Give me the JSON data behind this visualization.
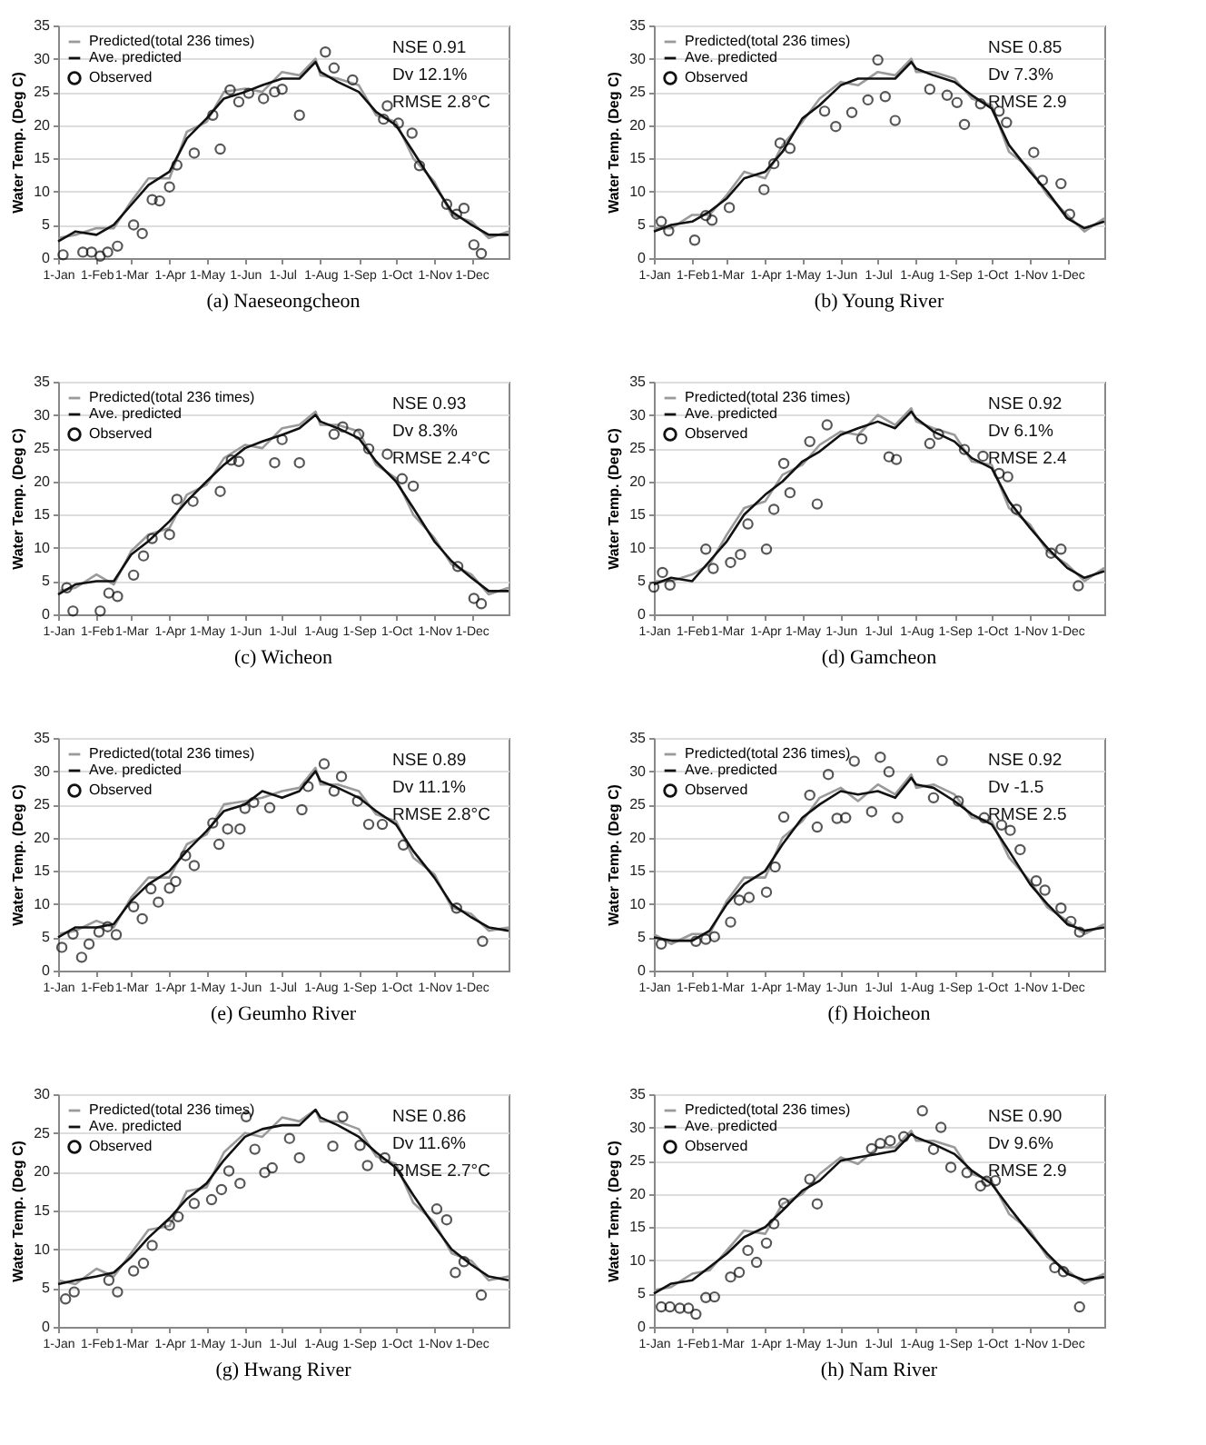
{
  "chart_data": [
    {
      "type": "line",
      "title": "(a) Naeseongcheon",
      "ylabel": "Water Temp. (Deg C)",
      "legend": "top left",
      "grid": "y",
      "x": [
        "--01-01",
        "--01-15",
        "--02-01",
        "--02-15",
        "--03-01",
        "--03-15",
        "--04-01",
        "--04-15",
        "--05-01",
        "--05-15",
        "--06-01",
        "--06-15",
        "--07-01",
        "--07-15",
        "--07-28",
        "--08-01",
        "--08-15",
        "--09-01",
        "--09-15",
        "--10-01",
        "--10-15",
        "--11-01",
        "--11-15",
        "--12-01",
        "--12-15",
        "--12-31"
      ],
      "xlim": [
        "--01-01",
        "--12-31"
      ],
      "xticks": [
        {
          "value": "--01-01",
          "label": "1-Jan"
        },
        {
          "value": "--02-01",
          "label": "1-Feb"
        },
        {
          "value": "--03-01",
          "label": "1-Mar"
        },
        {
          "value": "--04-01",
          "label": "1-Apr"
        },
        {
          "value": "--05-01",
          "label": "1-May"
        },
        {
          "value": "--06-01",
          "label": "1-Jun"
        },
        {
          "value": "--07-01",
          "label": "1-Jul"
        },
        {
          "value": "--08-01",
          "label": "1-Aug"
        },
        {
          "value": "--09-01",
          "label": "1-Sep"
        },
        {
          "value": "--10-01",
          "label": "1-Oct"
        },
        {
          "value": "--11-01",
          "label": "1-Nov"
        },
        {
          "value": "--12-01",
          "label": "1-Dec"
        }
      ],
      "ylim": [
        0,
        35
      ],
      "yticks": [
        0,
        5,
        10,
        15,
        20,
        25,
        30,
        35
      ],
      "annotations": [
        "NSE 0.91",
        "Dv 12.1%",
        "RMSE 2.8°C"
      ],
      "series": [
        {
          "name": "Predicted(total 236 times)",
          "type": "line",
          "color": "#9a9a9a",
          "values": [
            3,
            3.5,
            4.5,
            4.5,
            8.5,
            12,
            12,
            19,
            20.5,
            25,
            25.5,
            25,
            28,
            27.5,
            30,
            27.5,
            27,
            26,
            21.5,
            20.5,
            15,
            11.5,
            6.5,
            5.5,
            3,
            4
          ]
        },
        {
          "name": "Ave. predicted",
          "type": "line",
          "color": "#111111",
          "values": [
            2.5,
            4,
            3.5,
            5,
            8,
            11,
            13,
            18,
            21,
            24,
            25,
            26,
            27,
            27,
            29.5,
            28,
            26.5,
            25,
            22,
            20,
            16,
            11,
            7,
            5,
            3.5,
            3.5
          ]
        },
        {
          "name": "Observed",
          "type": "scatter",
          "marker": "circle",
          "color": "#111111",
          "x": [
            "--01-05",
            "--01-21",
            "--01-28",
            "--02-04",
            "--02-10",
            "--02-18",
            "--03-03",
            "--03-10",
            "--03-18",
            "--03-24",
            "--04-01",
            "--04-07",
            "--04-21",
            "--05-06",
            "--05-12",
            "--05-20",
            "--05-27",
            "--06-04",
            "--06-16",
            "--06-25",
            "--07-01",
            "--07-15",
            "--08-05",
            "--08-12",
            "--08-27",
            "--09-21",
            "--09-24",
            "--10-03",
            "--10-14",
            "--10-20",
            "--11-11",
            "--11-19",
            "--11-25",
            "--12-03",
            "--12-09"
          ],
          "values": [
            0.5,
            0.9,
            0.9,
            0.3,
            0.9,
            1.8,
            5,
            3.7,
            8.8,
            8.6,
            10.7,
            14,
            15.8,
            21.5,
            16.4,
            25.3,
            23.5,
            24.8,
            24,
            25,
            25.4,
            21.5,
            31,
            28.6,
            26.8,
            20.9,
            22.9,
            20.3,
            18.8,
            13.9,
            8.1,
            6.6,
            7.5,
            2,
            0.7
          ]
        }
      ]
    },
    {
      "type": "line",
      "title": "(b) Young River",
      "ylabel": "Water Temp. (Deg C)",
      "legend": "top left",
      "grid": "y",
      "x": [
        "--01-01",
        "--01-15",
        "--02-01",
        "--02-15",
        "--03-01",
        "--03-15",
        "--04-01",
        "--04-15",
        "--05-01",
        "--05-15",
        "--06-01",
        "--06-15",
        "--07-01",
        "--07-15",
        "--07-28",
        "--08-01",
        "--08-15",
        "--09-01",
        "--09-15",
        "--10-01",
        "--10-15",
        "--11-01",
        "--11-15",
        "--12-01",
        "--12-15",
        "--12-31"
      ],
      "xlim": [
        "--01-01",
        "--12-31"
      ],
      "xticks": [
        {
          "value": "--01-01",
          "label": "1-Jan"
        },
        {
          "value": "--02-01",
          "label": "1-Feb"
        },
        {
          "value": "--03-01",
          "label": "1-Mar"
        },
        {
          "value": "--04-01",
          "label": "1-Apr"
        },
        {
          "value": "--05-01",
          "label": "1-May"
        },
        {
          "value": "--06-01",
          "label": "1-Jun"
        },
        {
          "value": "--07-01",
          "label": "1-Jul"
        },
        {
          "value": "--08-01",
          "label": "1-Aug"
        },
        {
          "value": "--09-01",
          "label": "1-Sep"
        },
        {
          "value": "--10-01",
          "label": "1-Oct"
        },
        {
          "value": "--11-01",
          "label": "1-Nov"
        },
        {
          "value": "--12-01",
          "label": "1-Dec"
        }
      ],
      "ylim": [
        0,
        35
      ],
      "yticks": [
        0,
        5,
        10,
        15,
        20,
        25,
        30,
        35
      ],
      "annotations": [
        "NSE 0.85",
        "Dv 7.3%",
        "RMSE 2.9"
      ],
      "series": [
        {
          "name": "Predicted(total 236 times)",
          "type": "line",
          "color": "#9a9a9a",
          "values": [
            4.5,
            4.5,
            6.5,
            6.5,
            9.5,
            13,
            12,
            17,
            20.5,
            24,
            26.5,
            26,
            28,
            27.5,
            30,
            28,
            28,
            27,
            24,
            23,
            16,
            13.5,
            9.5,
            6.5,
            4,
            6
          ]
        },
        {
          "name": "Ave. predicted",
          "type": "line",
          "color": "#111111",
          "values": [
            4,
            5,
            5.5,
            7,
            9,
            12,
            13,
            16,
            21,
            23,
            26,
            27,
            27,
            27,
            29.5,
            28.5,
            27.5,
            26.5,
            24.5,
            22.5,
            17,
            13,
            10,
            6,
            4.5,
            5.5
          ]
        },
        {
          "name": "Observed",
          "type": "scatter",
          "marker": "circle",
          "color": "#111111",
          "x": [
            "--01-07",
            "--01-13",
            "--02-03",
            "--02-12",
            "--02-17",
            "--03-03",
            "--03-31",
            "--04-08",
            "--04-13",
            "--04-21",
            "--05-19",
            "--05-28",
            "--06-10",
            "--06-23",
            "--07-01",
            "--07-07",
            "--07-15",
            "--08-12",
            "--08-26",
            "--09-03",
            "--09-09",
            "--09-22",
            "--10-07",
            "--10-13",
            "--11-04",
            "--11-11",
            "--11-26",
            "--12-03"
          ],
          "values": [
            5.5,
            4.1,
            2.7,
            6.4,
            5.7,
            7.6,
            10.3,
            14.2,
            17.3,
            16.5,
            22.1,
            19.8,
            21.9,
            23.8,
            29.8,
            24.3,
            20.7,
            25.4,
            24.5,
            23.4,
            20.1,
            23.2,
            22.1,
            20.4,
            15.9,
            11.7,
            11.2,
            6.6
          ]
        }
      ]
    },
    {
      "type": "line",
      "title": "(c) Wicheon",
      "ylabel": "Water Temp. (Deg C)",
      "legend": "top left",
      "grid": "y",
      "x": [
        "--01-01",
        "--01-15",
        "--02-01",
        "--02-15",
        "--03-01",
        "--03-15",
        "--04-01",
        "--04-15",
        "--05-01",
        "--05-15",
        "--06-01",
        "--06-15",
        "--07-01",
        "--07-15",
        "--07-28",
        "--08-01",
        "--08-15",
        "--09-01",
        "--09-15",
        "--10-01",
        "--10-15",
        "--11-01",
        "--11-15",
        "--12-01",
        "--12-15",
        "--12-31"
      ],
      "xlim": [
        "--01-01",
        "--12-31"
      ],
      "xticks": [
        {
          "value": "--01-01",
          "label": "1-Jan"
        },
        {
          "value": "--02-01",
          "label": "1-Feb"
        },
        {
          "value": "--03-01",
          "label": "1-Mar"
        },
        {
          "value": "--04-01",
          "label": "1-Apr"
        },
        {
          "value": "--05-01",
          "label": "1-May"
        },
        {
          "value": "--06-01",
          "label": "1-Jun"
        },
        {
          "value": "--07-01",
          "label": "1-Jul"
        },
        {
          "value": "--08-01",
          "label": "1-Aug"
        },
        {
          "value": "--09-01",
          "label": "1-Sep"
        },
        {
          "value": "--10-01",
          "label": "1-Oct"
        },
        {
          "value": "--11-01",
          "label": "1-Nov"
        },
        {
          "value": "--12-01",
          "label": "1-Dec"
        }
      ],
      "ylim": [
        0,
        35
      ],
      "yticks": [
        0,
        5,
        10,
        15,
        20,
        25,
        30,
        35
      ],
      "annotations": [
        "NSE 0.93",
        "Dv 8.3%",
        "RMSE 2.4°C"
      ],
      "series": [
        {
          "name": "Predicted(total 236 times)",
          "type": "line",
          "color": "#9a9a9a",
          "values": [
            3.5,
            4,
            6,
            4.5,
            9.5,
            12,
            13,
            18,
            19.5,
            23.5,
            25.5,
            25,
            28,
            28.5,
            30.5,
            28.5,
            28.5,
            27.5,
            22.5,
            20.5,
            15,
            11.5,
            7.5,
            6,
            3,
            4
          ]
        },
        {
          "name": "Ave. predicted",
          "type": "line",
          "color": "#111111",
          "values": [
            3,
            4.5,
            5,
            5,
            9,
            11,
            14,
            17,
            20,
            22.5,
            25,
            26,
            27,
            28,
            30,
            29,
            28,
            26.5,
            23,
            20,
            16,
            11,
            8,
            5.5,
            3.5,
            3.5
          ]
        },
        {
          "name": "Observed",
          "type": "scatter",
          "marker": "circle",
          "color": "#111111",
          "x": [
            "--01-08",
            "--01-13",
            "--02-04",
            "--02-11",
            "--02-18",
            "--03-03",
            "--03-11",
            "--03-18",
            "--04-01",
            "--04-07",
            "--04-20",
            "--05-12",
            "--05-21",
            "--05-27",
            "--06-25",
            "--07-01",
            "--07-15",
            "--08-12",
            "--08-19",
            "--09-01",
            "--09-09",
            "--09-24",
            "--10-06",
            "--10-15",
            "--11-20",
            "--12-03",
            "--12-09"
          ],
          "values": [
            4,
            0.5,
            0.5,
            3.2,
            2.7,
            5.9,
            8.8,
            11.4,
            12,
            17.3,
            17,
            18.5,
            23.2,
            23,
            22.8,
            26.3,
            22.8,
            27.1,
            28.2,
            27.1,
            24.9,
            24.1,
            20.4,
            19.3,
            7.2,
            2.4,
            1.6
          ]
        }
      ]
    },
    {
      "type": "line",
      "title": "(d) Gamcheon",
      "ylabel": "Water Temp. (Deg C)",
      "legend": "top left",
      "grid": "y",
      "x": [
        "--01-01",
        "--01-15",
        "--02-01",
        "--02-15",
        "--03-01",
        "--03-15",
        "--04-01",
        "--04-15",
        "--05-01",
        "--05-15",
        "--06-01",
        "--06-15",
        "--07-01",
        "--07-15",
        "--07-28",
        "--08-01",
        "--08-15",
        "--09-01",
        "--09-15",
        "--10-01",
        "--10-15",
        "--11-01",
        "--11-15",
        "--12-01",
        "--12-15",
        "--12-31"
      ],
      "xlim": [
        "--01-01",
        "--12-31"
      ],
      "xticks": [
        {
          "value": "--01-01",
          "label": "1-Jan"
        },
        {
          "value": "--02-01",
          "label": "1-Feb"
        },
        {
          "value": "--03-01",
          "label": "1-Mar"
        },
        {
          "value": "--04-01",
          "label": "1-Apr"
        },
        {
          "value": "--05-01",
          "label": "1-May"
        },
        {
          "value": "--06-01",
          "label": "1-Jun"
        },
        {
          "value": "--07-01",
          "label": "1-Jul"
        },
        {
          "value": "--08-01",
          "label": "1-Aug"
        },
        {
          "value": "--09-01",
          "label": "1-Sep"
        },
        {
          "value": "--10-01",
          "label": "1-Oct"
        },
        {
          "value": "--11-01",
          "label": "1-Nov"
        },
        {
          "value": "--12-01",
          "label": "1-Dec"
        }
      ],
      "ylim": [
        0,
        35
      ],
      "yticks": [
        0,
        5,
        10,
        15,
        20,
        25,
        30,
        35
      ],
      "annotations": [
        "NSE 0.92",
        "Dv 6.1%",
        "RMSE 2.4"
      ],
      "series": [
        {
          "name": "Predicted(total 236 times)",
          "type": "line",
          "color": "#9a9a9a",
          "values": [
            5,
            5,
            6,
            7.5,
            12,
            16,
            17,
            21,
            22.5,
            25.5,
            27.5,
            27,
            30,
            28.5,
            31,
            29,
            28,
            27,
            23,
            22.5,
            16,
            13.5,
            9.5,
            7.5,
            5,
            7
          ]
        },
        {
          "name": "Ave. predicted",
          "type": "line",
          "color": "#111111",
          "values": [
            4.5,
            5.5,
            5,
            8,
            11,
            15,
            18,
            20,
            23,
            24.5,
            27,
            28,
            29,
            28,
            30.5,
            29.5,
            27.5,
            26,
            23.5,
            22,
            17,
            13,
            10,
            7,
            5.5,
            6.5
          ]
        },
        {
          "name": "Observed",
          "type": "scatter",
          "marker": "circle",
          "color": "#111111",
          "x": [
            "--01-01",
            "--01-08",
            "--01-14",
            "--02-12",
            "--02-18",
            "--03-04",
            "--03-12",
            "--03-18",
            "--04-02",
            "--04-08",
            "--04-16",
            "--04-21",
            "--05-07",
            "--05-13",
            "--05-21",
            "--06-18",
            "--07-10",
            "--07-16",
            "--08-12",
            "--08-19",
            "--09-09",
            "--09-24",
            "--10-07",
            "--10-14",
            "--10-21",
            "--11-18",
            "--11-26",
            "--12-10"
          ],
          "values": [
            4.1,
            6.3,
            4.4,
            9.8,
            6.9,
            7.8,
            9,
            13.6,
            9.8,
            15.8,
            22.7,
            18.3,
            26,
            16.6,
            28.5,
            26.4,
            23.7,
            23.3,
            25.7,
            27.1,
            24.8,
            23.8,
            21.2,
            20.7,
            15.8,
            9.2,
            9.8,
            4.3
          ]
        }
      ]
    },
    {
      "type": "line",
      "title": "(e) Geumho River",
      "ylabel": "Water Temp. (Deg C)",
      "legend": "top left",
      "grid": "y",
      "x": [
        "--01-01",
        "--01-15",
        "--02-01",
        "--02-15",
        "--03-01",
        "--03-15",
        "--04-01",
        "--04-15",
        "--05-01",
        "--05-15",
        "--06-01",
        "--06-15",
        "--07-01",
        "--07-15",
        "--07-28",
        "--08-01",
        "--08-15",
        "--09-01",
        "--09-15",
        "--10-01",
        "--10-15",
        "--11-01",
        "--11-15",
        "--12-01",
        "--12-15",
        "--12-31"
      ],
      "xlim": [
        "--01-01",
        "--12-31"
      ],
      "xticks": [
        {
          "value": "--01-01",
          "label": "1-Jan"
        },
        {
          "value": "--02-01",
          "label": "1-Feb"
        },
        {
          "value": "--03-01",
          "label": "1-Mar"
        },
        {
          "value": "--04-01",
          "label": "1-Apr"
        },
        {
          "value": "--05-01",
          "label": "1-May"
        },
        {
          "value": "--06-01",
          "label": "1-Jun"
        },
        {
          "value": "--07-01",
          "label": "1-Jul"
        },
        {
          "value": "--08-01",
          "label": "1-Aug"
        },
        {
          "value": "--09-01",
          "label": "1-Sep"
        },
        {
          "value": "--10-01",
          "label": "1-Oct"
        },
        {
          "value": "--11-01",
          "label": "1-Nov"
        },
        {
          "value": "--12-01",
          "label": "1-Dec"
        }
      ],
      "ylim": [
        0,
        35
      ],
      "yticks": [
        0,
        5,
        10,
        15,
        20,
        25,
        30,
        35
      ],
      "annotations": [
        "NSE 0.89",
        "Dv 11.1%",
        "RMSE 2.8°C"
      ],
      "series": [
        {
          "name": "Predicted(total 236 times)",
          "type": "line",
          "color": "#9a9a9a",
          "values": [
            5.5,
            6,
            7.5,
            6.5,
            11,
            14,
            14,
            19,
            20.5,
            25,
            25.5,
            26,
            27,
            27.5,
            30.5,
            28,
            28,
            27,
            23.5,
            22.5,
            17,
            14.5,
            9.5,
            8.5,
            6,
            6.5
          ]
        },
        {
          "name": "Ave. predicted",
          "type": "line",
          "color": "#111111",
          "values": [
            5,
            6.5,
            6.5,
            7,
            10.5,
            13,
            15,
            18,
            21,
            24,
            25,
            27,
            26,
            27,
            30,
            28.5,
            27.5,
            26,
            24,
            22,
            18,
            14,
            10,
            8,
            6.5,
            6
          ]
        },
        {
          "name": "Observed",
          "type": "scatter",
          "marker": "circle",
          "color": "#111111",
          "x": [
            "--01-04",
            "--01-13",
            "--01-20",
            "--01-26",
            "--02-03",
            "--02-10",
            "--02-17",
            "--03-03",
            "--03-10",
            "--03-17",
            "--03-23",
            "--04-01",
            "--04-06",
            "--04-14",
            "--04-21",
            "--05-06",
            "--05-11",
            "--05-18",
            "--05-28",
            "--06-01",
            "--06-08",
            "--06-21",
            "--07-17",
            "--07-22",
            "--08-04",
            "--08-12",
            "--08-18",
            "--08-31",
            "--09-09",
            "--09-20",
            "--10-07",
            "--11-19",
            "--12-10"
          ],
          "values": [
            3.5,
            5.5,
            2,
            4,
            5.8,
            6.6,
            5.4,
            9.6,
            7.8,
            12.3,
            10.3,
            12.4,
            13.4,
            17.3,
            15.8,
            22.2,
            19,
            21.3,
            21.3,
            24.4,
            25.3,
            24.5,
            24.2,
            27.7,
            31.1,
            27,
            29.2,
            25.5,
            22,
            22,
            18.9,
            9.4,
            4.4
          ]
        }
      ]
    },
    {
      "type": "line",
      "title": "(f) Hoicheon",
      "ylabel": "Water Temp. (Deg C)",
      "legend": "top left",
      "grid": "y",
      "x": [
        "--01-01",
        "--01-15",
        "--02-01",
        "--02-15",
        "--03-01",
        "--03-15",
        "--04-01",
        "--04-15",
        "--05-01",
        "--05-15",
        "--06-01",
        "--06-15",
        "--07-01",
        "--07-15",
        "--07-28",
        "--08-01",
        "--08-15",
        "--09-01",
        "--09-15",
        "--10-01",
        "--10-15",
        "--11-01",
        "--11-15",
        "--12-01",
        "--12-15",
        "--12-31"
      ],
      "xlim": [
        "--01-01",
        "--12-31"
      ],
      "xticks": [
        {
          "value": "--01-01",
          "label": "1-Jan"
        },
        {
          "value": "--02-01",
          "label": "1-Feb"
        },
        {
          "value": "--03-01",
          "label": "1-Mar"
        },
        {
          "value": "--04-01",
          "label": "1-Apr"
        },
        {
          "value": "--05-01",
          "label": "1-May"
        },
        {
          "value": "--06-01",
          "label": "1-Jun"
        },
        {
          "value": "--07-01",
          "label": "1-Jul"
        },
        {
          "value": "--08-01",
          "label": "1-Aug"
        },
        {
          "value": "--09-01",
          "label": "1-Sep"
        },
        {
          "value": "--10-01",
          "label": "1-Oct"
        },
        {
          "value": "--11-01",
          "label": "1-Nov"
        },
        {
          "value": "--12-01",
          "label": "1-Dec"
        }
      ],
      "ylim": [
        0,
        35
      ],
      "yticks": [
        0,
        5,
        10,
        15,
        20,
        25,
        30,
        35
      ],
      "annotations": [
        "NSE 0.92",
        "Dv -1.5",
        "RMSE 2.5"
      ],
      "series": [
        {
          "name": "Predicted(total 236 times)",
          "type": "line",
          "color": "#9a9a9a",
          "values": [
            5.5,
            4,
            5.5,
            5.5,
            10.5,
            14,
            14,
            20,
            22.5,
            26,
            27.5,
            25.5,
            28,
            26.5,
            29.5,
            27.5,
            28,
            26.5,
            23,
            22.5,
            17,
            13.5,
            9.5,
            7.5,
            5.5,
            7
          ]
        },
        {
          "name": "Ave. predicted",
          "type": "line",
          "color": "#111111",
          "values": [
            5,
            4.5,
            4.5,
            6,
            10,
            13,
            15,
            19,
            23,
            25,
            27,
            26.5,
            27,
            26,
            29,
            28,
            27.5,
            25.5,
            23.5,
            22,
            18,
            13,
            10,
            7,
            6,
            6.5
          ]
        },
        {
          "name": "Observed",
          "type": "scatter",
          "marker": "circle",
          "color": "#111111",
          "x": [
            "--01-07",
            "--02-04",
            "--02-12",
            "--02-19",
            "--03-04",
            "--03-11",
            "--03-19",
            "--04-02",
            "--04-09",
            "--04-16",
            "--05-07",
            "--05-13",
            "--05-22",
            "--05-29",
            "--06-05",
            "--06-12",
            "--06-26",
            "--07-03",
            "--07-10",
            "--07-17",
            "--08-15",
            "--08-22",
            "--09-04",
            "--09-25",
            "--10-09",
            "--10-16",
            "--10-24",
            "--11-06",
            "--11-13",
            "--11-26",
            "--12-04",
            "--12-11"
          ],
          "values": [
            4,
            4.4,
            4.7,
            5.1,
            7.3,
            10.6,
            11,
            11.8,
            15.6,
            23.1,
            26.4,
            21.6,
            29.5,
            22.9,
            23,
            31.5,
            23.9,
            32.1,
            29.9,
            23,
            26,
            31.6,
            25.5,
            23,
            21.9,
            21.1,
            18.2,
            13.5,
            12.1,
            9.4,
            7.4,
            5.8
          ]
        }
      ]
    },
    {
      "type": "line",
      "title": "(g) Hwang River",
      "ylabel": "Water Temp. (Deg C)",
      "legend": "top left",
      "grid": "y",
      "x": [
        "--01-01",
        "--01-15",
        "--02-01",
        "--02-15",
        "--03-01",
        "--03-15",
        "--04-01",
        "--04-15",
        "--05-01",
        "--05-15",
        "--06-01",
        "--06-15",
        "--07-01",
        "--07-15",
        "--07-28",
        "--08-01",
        "--08-15",
        "--09-01",
        "--09-15",
        "--10-01",
        "--10-15",
        "--11-01",
        "--11-15",
        "--12-01",
        "--12-15",
        "--12-31"
      ],
      "xlim": [
        "--01-01",
        "--12-31"
      ],
      "xticks": [
        {
          "value": "--01-01",
          "label": "1-Jan"
        },
        {
          "value": "--02-01",
          "label": "1-Feb"
        },
        {
          "value": "--03-01",
          "label": "1-Mar"
        },
        {
          "value": "--04-01",
          "label": "1-Apr"
        },
        {
          "value": "--05-01",
          "label": "1-May"
        },
        {
          "value": "--06-01",
          "label": "1-Jun"
        },
        {
          "value": "--07-01",
          "label": "1-Jul"
        },
        {
          "value": "--08-01",
          "label": "1-Aug"
        },
        {
          "value": "--09-01",
          "label": "1-Sep"
        },
        {
          "value": "--10-01",
          "label": "1-Oct"
        },
        {
          "value": "--11-01",
          "label": "1-Nov"
        },
        {
          "value": "--12-01",
          "label": "1-Dec"
        }
      ],
      "ylim": [
        0,
        30
      ],
      "yticks": [
        0,
        5,
        10,
        15,
        20,
        25,
        30
      ],
      "annotations": [
        "NSE 0.86",
        "Dv 11.6%",
        "RMSE 2.7°C"
      ],
      "series": [
        {
          "name": "Predicted(total 236 times)",
          "type": "line",
          "color": "#9a9a9a",
          "values": [
            6,
            5.5,
            7.5,
            6.5,
            9.5,
            12.5,
            13,
            17.5,
            18,
            22.5,
            25,
            24.5,
            27,
            26.5,
            28,
            26.5,
            26.5,
            25.5,
            22,
            21,
            16,
            13.5,
            9.5,
            8.5,
            6,
            6.5
          ]
        },
        {
          "name": "Ave. predicted",
          "type": "line",
          "color": "#111111",
          "values": [
            5.5,
            6,
            6.5,
            7,
            9,
            11.5,
            14,
            16.5,
            18.5,
            21.5,
            24.5,
            25.5,
            26,
            26,
            28,
            27,
            26,
            24.5,
            22.5,
            20.5,
            17,
            13,
            10,
            8,
            6.5,
            6
          ]
        },
        {
          "name": "Observed",
          "type": "scatter",
          "marker": "circle",
          "color": "#111111",
          "x": [
            "--01-07",
            "--01-14",
            "--02-11",
            "--02-18",
            "--03-03",
            "--03-11",
            "--03-18",
            "--04-01",
            "--04-08",
            "--04-21",
            "--05-05",
            "--05-13",
            "--05-19",
            "--05-28",
            "--06-02",
            "--06-09",
            "--06-17",
            "--06-23",
            "--07-07",
            "--07-15",
            "--08-11",
            "--08-19",
            "--09-02",
            "--09-08",
            "--09-22",
            "--11-03",
            "--11-11",
            "--11-18",
            "--11-25",
            "--12-09"
          ],
          "values": [
            3.6,
            4.5,
            6,
            4.5,
            7.2,
            8.2,
            10.5,
            13.1,
            14.2,
            15.9,
            16.4,
            17.7,
            20.1,
            18.5,
            27.1,
            22.9,
            19.9,
            20.5,
            24.3,
            21.8,
            23.3,
            27.1,
            23.4,
            20.8,
            21.8,
            15.2,
            13.8,
            7,
            8.4,
            4.1
          ]
        }
      ]
    },
    {
      "type": "line",
      "title": "(h) Nam River",
      "ylabel": "Water Temp. (Deg C)",
      "legend": "top left",
      "grid": "y",
      "x": [
        "--01-01",
        "--01-15",
        "--02-01",
        "--02-15",
        "--03-01",
        "--03-15",
        "--04-01",
        "--04-15",
        "--05-01",
        "--05-15",
        "--06-01",
        "--06-15",
        "--07-01",
        "--07-15",
        "--07-28",
        "--08-01",
        "--08-15",
        "--09-01",
        "--09-15",
        "--10-01",
        "--10-15",
        "--11-01",
        "--11-15",
        "--12-01",
        "--12-15",
        "--12-31"
      ],
      "xlim": [
        "--01-01",
        "--12-31"
      ],
      "xticks": [
        {
          "value": "--01-01",
          "label": "1-Jan"
        },
        {
          "value": "--02-01",
          "label": "1-Feb"
        },
        {
          "value": "--03-01",
          "label": "1-Mar"
        },
        {
          "value": "--04-01",
          "label": "1-Apr"
        },
        {
          "value": "--05-01",
          "label": "1-May"
        },
        {
          "value": "--06-01",
          "label": "1-Jun"
        },
        {
          "value": "--07-01",
          "label": "1-Jul"
        },
        {
          "value": "--08-01",
          "label": "1-Aug"
        },
        {
          "value": "--09-01",
          "label": "1-Sep"
        },
        {
          "value": "--10-01",
          "label": "1-Oct"
        },
        {
          "value": "--11-01",
          "label": "1-Nov"
        },
        {
          "value": "--12-01",
          "label": "1-Dec"
        }
      ],
      "ylim": [
        0,
        35
      ],
      "yticks": [
        0,
        5,
        10,
        15,
        20,
        25,
        30,
        35
      ],
      "annotations": [
        "NSE 0.90",
        "Dv 9.6%",
        "RMSE 2.9"
      ],
      "series": [
        {
          "name": "Predicted(total 236 times)",
          "type": "line",
          "color": "#9a9a9a",
          "values": [
            5.5,
            6,
            8,
            8.5,
            11.5,
            14.5,
            14,
            18.5,
            20,
            23,
            25.5,
            24.5,
            27,
            27,
            29.5,
            28,
            28,
            27,
            23,
            22,
            17,
            14.5,
            10.5,
            8.5,
            6.5,
            8
          ]
        },
        {
          "name": "Ave. predicted",
          "type": "line",
          "color": "#111111",
          "values": [
            5,
            6.5,
            7,
            9,
            11,
            13.5,
            15,
            17.5,
            20.5,
            22,
            25,
            25.5,
            26,
            26.5,
            29,
            28.5,
            27.5,
            26,
            23.5,
            21.5,
            18,
            14,
            11,
            8,
            7,
            7.5
          ]
        },
        {
          "name": "Observed",
          "type": "scatter",
          "marker": "circle",
          "color": "#111111",
          "x": [
            "--01-07",
            "--01-14",
            "--01-22",
            "--01-29",
            "--02-04",
            "--02-12",
            "--02-19",
            "--03-04",
            "--03-11",
            "--03-18",
            "--03-25",
            "--04-02",
            "--04-08",
            "--04-16",
            "--05-07",
            "--05-13",
            "--06-26",
            "--07-03",
            "--07-11",
            "--07-22",
            "--08-06",
            "--08-15",
            "--08-21",
            "--08-29",
            "--09-11",
            "--09-22",
            "--09-27",
            "--10-04",
            "--11-21",
            "--11-28",
            "--12-11"
          ],
          "values": [
            3,
            3,
            2.8,
            2.8,
            1.9,
            4.4,
            4.5,
            7.5,
            8.2,
            11.5,
            9.7,
            12.6,
            15.5,
            18.6,
            22.2,
            18.5,
            26.8,
            27.6,
            28,
            28.6,
            32.5,
            26.7,
            30,
            24,
            23.2,
            21.2,
            21.9,
            22,
            8.9,
            8.3,
            3
          ]
        }
      ]
    }
  ]
}
